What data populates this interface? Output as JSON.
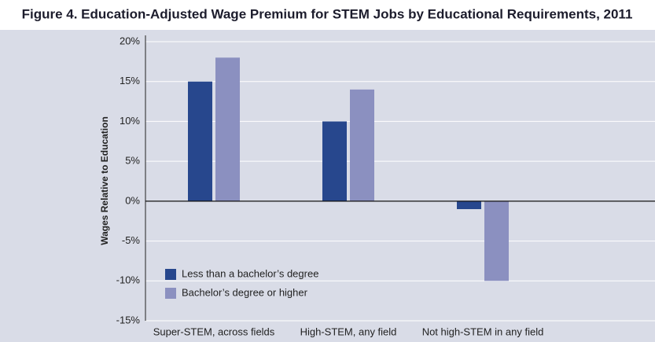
{
  "chart_data": {
    "type": "bar",
    "title": "Figure 4. Education-Adjusted Wage Premium for STEM Jobs by Educational Requirements, 2011",
    "y_label": "Wages Relative to Education",
    "categories": [
      "Super-STEM, across fields",
      "High-STEM, any field",
      "Not high-STEM in any field"
    ],
    "series": [
      {
        "name": "Less than a bachelor’s degree",
        "color": "#27478d",
        "values": [
          15,
          10,
          -1
        ]
      },
      {
        "name": "Bachelor’s degree or higher",
        "color": "#8b90c0",
        "values": [
          18,
          14,
          -10
        ]
      }
    ],
    "ylim": [
      -15,
      20
    ],
    "yticks": [
      {
        "value": -15,
        "label": "-15%"
      },
      {
        "value": -10,
        "label": "-10%"
      },
      {
        "value": -5,
        "label": "-5%"
      },
      {
        "value": 0,
        "label": "0%"
      },
      {
        "value": 5,
        "label": "5%"
      },
      {
        "value": 10,
        "label": "10%"
      },
      {
        "value": 15,
        "label": "15%"
      },
      {
        "value": 20,
        "label": "20%"
      }
    ],
    "grid": true,
    "legend": "lower-left"
  }
}
